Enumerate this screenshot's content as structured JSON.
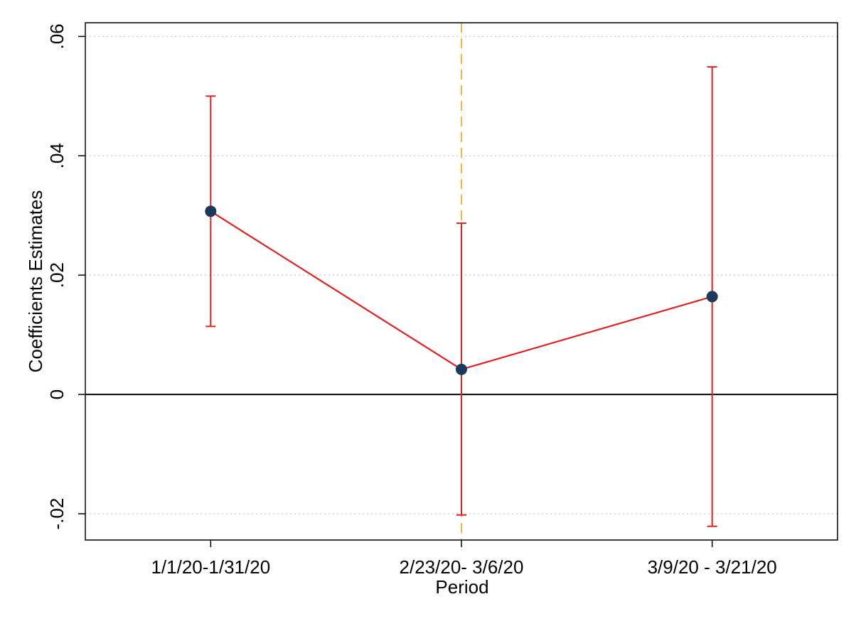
{
  "chart_data": {
    "type": "line",
    "x_label": "Period",
    "y_label": "Coefficients Estimates",
    "categories": [
      "1/1/20-1/31/20",
      "2/23/20- 3/6/20",
      "3/9/20 - 3/21/20"
    ],
    "values": [
      0.0307,
      0.0042,
      0.0164
    ],
    "ci_low": [
      0.0114,
      -0.0202,
      -0.0221
    ],
    "ci_high": [
      0.05,
      0.0287,
      0.0549
    ],
    "line_color": "#e3201f",
    "marker_color": "#1a3a5c",
    "errorbar_color": "#e3201f",
    "ylim": [
      -0.0244,
      0.0623
    ],
    "yticks": [
      {
        "value": -0.02,
        "label": "-.02"
      },
      0,
      {
        "value": 0.02,
        "label": ".02"
      },
      {
        "value": 0.04,
        "label": ".04"
      },
      {
        "value": 0.06,
        "label": ".06"
      }
    ],
    "grid": true,
    "hline": 0,
    "vline_index": 1,
    "vline_color": "#f2b640"
  }
}
